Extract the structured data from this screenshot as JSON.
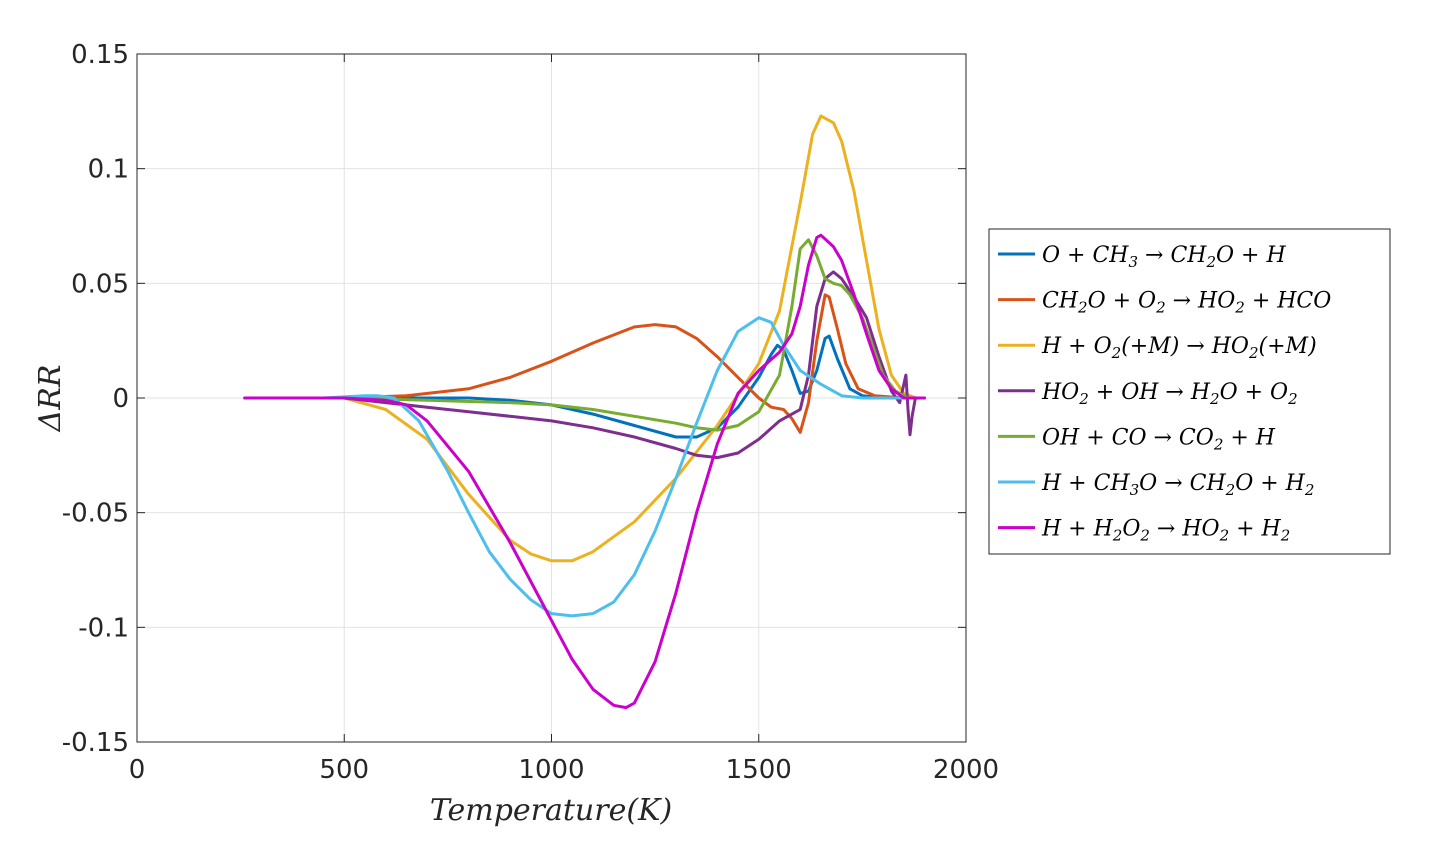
{
  "chart_data": {
    "type": "line",
    "title": "",
    "xlabel": "Temperature(K)",
    "ylabel": "ΔRR",
    "xlim": [
      0,
      2000
    ],
    "ylim": [
      -0.15,
      0.15
    ],
    "xticks": [
      0,
      500,
      1000,
      1500,
      2000
    ],
    "xtick_labels": [
      "0",
      "500",
      "1000",
      "1500",
      "2000"
    ],
    "yticks": [
      -0.15,
      -0.1,
      -0.05,
      0,
      0.05,
      0.1,
      0.15
    ],
    "ytick_labels": [
      "-0.15",
      "-0.1",
      "-0.05",
      "0",
      "0.05",
      "0.1",
      "0.15"
    ],
    "grid": true,
    "legend_position": "outside-right",
    "series": [
      {
        "name": "O + CH3 → CH2O + H",
        "color": "#0072BD",
        "x": [
          260,
          500,
          700,
          800,
          900,
          1000,
          1100,
          1200,
          1300,
          1350,
          1400,
          1450,
          1500,
          1530,
          1545,
          1560,
          1580,
          1600,
          1620,
          1640,
          1660,
          1670,
          1690,
          1720,
          1750,
          1800,
          1860,
          1900
        ],
        "y": [
          0,
          0,
          0,
          0,
          -0.001,
          -0.003,
          -0.007,
          -0.012,
          -0.017,
          -0.017,
          -0.013,
          -0.004,
          0.009,
          0.019,
          0.023,
          0.021,
          0.012,
          0.002,
          0.003,
          0.012,
          0.026,
          0.027,
          0.017,
          0.004,
          0.001,
          0,
          0,
          0
        ]
      },
      {
        "name": "CH2O + O2 → HO2 + HCO",
        "color": "#D95319",
        "x": [
          260,
          500,
          650,
          800,
          900,
          1000,
          1100,
          1200,
          1250,
          1300,
          1350,
          1400,
          1450,
          1500,
          1530,
          1560,
          1580,
          1600,
          1620,
          1640,
          1660,
          1670,
          1690,
          1710,
          1740,
          1780,
          1850,
          1900
        ],
        "y": [
          0,
          0,
          0.001,
          0.004,
          0.009,
          0.016,
          0.024,
          0.031,
          0.032,
          0.031,
          0.026,
          0.018,
          0.009,
          0,
          -0.004,
          -0.005,
          -0.009,
          -0.015,
          -0.002,
          0.025,
          0.045,
          0.044,
          0.03,
          0.015,
          0.004,
          0.001,
          0,
          0
        ]
      },
      {
        "name": "H + O2(+M) → HO2(+M)",
        "color": "#EDB120",
        "x": [
          260,
          500,
          600,
          700,
          800,
          900,
          950,
          1000,
          1050,
          1100,
          1200,
          1300,
          1400,
          1500,
          1550,
          1600,
          1630,
          1650,
          1680,
          1700,
          1730,
          1760,
          1790,
          1820,
          1850,
          1880,
          1900
        ],
        "y": [
          0,
          0,
          -0.005,
          -0.018,
          -0.042,
          -0.062,
          -0.068,
          -0.071,
          -0.071,
          -0.067,
          -0.054,
          -0.035,
          -0.012,
          0.015,
          0.038,
          0.085,
          0.115,
          0.123,
          0.12,
          0.112,
          0.09,
          0.06,
          0.03,
          0.01,
          0.002,
          0,
          0
        ]
      },
      {
        "name": "HO2 + OH → H2O + O2",
        "color": "#7E2F8E",
        "x": [
          260,
          500,
          600,
          700,
          800,
          900,
          1000,
          1100,
          1200,
          1300,
          1350,
          1400,
          1450,
          1500,
          1550,
          1580,
          1600,
          1620,
          1640,
          1660,
          1680,
          1700,
          1730,
          1760,
          1790,
          1820,
          1840,
          1855,
          1860,
          1865,
          1870,
          1878,
          1890,
          1900
        ],
        "y": [
          0,
          0,
          -0.002,
          -0.004,
          -0.006,
          -0.008,
          -0.01,
          -0.013,
          -0.017,
          -0.022,
          -0.025,
          -0.026,
          -0.024,
          -0.018,
          -0.01,
          -0.007,
          -0.005,
          0.01,
          0.04,
          0.052,
          0.055,
          0.052,
          0.044,
          0.035,
          0.018,
          0.003,
          -0.002,
          0.01,
          -0.005,
          -0.016,
          -0.008,
          0,
          0,
          0
        ]
      },
      {
        "name": "OH + CO → CO2 + H",
        "color": "#77AC30",
        "x": [
          260,
          500,
          700,
          900,
          1000,
          1100,
          1200,
          1300,
          1350,
          1400,
          1450,
          1500,
          1550,
          1580,
          1600,
          1620,
          1640,
          1660,
          1680,
          1700,
          1720,
          1750,
          1780,
          1800,
          1830,
          1860,
          1900
        ],
        "y": [
          0,
          0,
          -0.001,
          -0.002,
          -0.003,
          -0.005,
          -0.008,
          -0.011,
          -0.013,
          -0.014,
          -0.012,
          -0.006,
          0.01,
          0.04,
          0.065,
          0.069,
          0.062,
          0.052,
          0.05,
          0.049,
          0.045,
          0.035,
          0.02,
          0.01,
          0.003,
          0,
          0
        ]
      },
      {
        "name": "H + CH3O → CH2O + H2",
        "color": "#4DBEEE",
        "x": [
          260,
          450,
          550,
          580,
          620,
          680,
          750,
          800,
          850,
          900,
          950,
          1000,
          1050,
          1100,
          1150,
          1200,
          1250,
          1300,
          1350,
          1400,
          1450,
          1500,
          1530,
          1560,
          1600,
          1650,
          1700,
          1750,
          1800,
          1850,
          1900
        ],
        "y": [
          0,
          0,
          0.001,
          0.001,
          0,
          -0.01,
          -0.032,
          -0.05,
          -0.067,
          -0.079,
          -0.088,
          -0.094,
          -0.095,
          -0.094,
          -0.089,
          -0.077,
          -0.058,
          -0.035,
          -0.011,
          0.012,
          0.029,
          0.035,
          0.033,
          0.023,
          0.012,
          0.006,
          0.001,
          0,
          0,
          0,
          0
        ]
      },
      {
        "name": "H + H2O2 → HO2 + H2",
        "color": "#CC00CC",
        "x": [
          260,
          500,
          600,
          650,
          700,
          800,
          900,
          1000,
          1050,
          1100,
          1150,
          1180,
          1200,
          1250,
          1300,
          1350,
          1400,
          1450,
          1500,
          1550,
          1580,
          1600,
          1620,
          1640,
          1650,
          1680,
          1700,
          1730,
          1760,
          1790,
          1820,
          1850,
          1900
        ],
        "y": [
          0,
          0,
          -0.001,
          -0.003,
          -0.01,
          -0.032,
          -0.063,
          -0.097,
          -0.114,
          -0.127,
          -0.134,
          -0.135,
          -0.133,
          -0.115,
          -0.085,
          -0.05,
          -0.02,
          0.002,
          0.012,
          0.02,
          0.028,
          0.04,
          0.058,
          0.07,
          0.071,
          0.066,
          0.06,
          0.045,
          0.028,
          0.012,
          0.004,
          0,
          0
        ]
      }
    ]
  },
  "legend": {
    "entries": [
      {
        "pre": "O + CH",
        "sub1": "3",
        "mid": " → CH",
        "sub2": "2",
        "post": "O + H"
      },
      {
        "pre": "CH",
        "sub1": "2",
        "mid": "O + O",
        "sub2": "2",
        "mid2": " → HO",
        "sub3": "2",
        "post": " + HCO"
      },
      {
        "pre": "H + O",
        "sub1": "2",
        "mid": "(+M) → HO",
        "sub2": "2",
        "post": "(+M)"
      },
      {
        "pre": "HO",
        "sub1": "2",
        "mid": " + OH → H",
        "sub2": "2",
        "mid2": "O + O",
        "sub3": "2",
        "post": ""
      },
      {
        "pre": "OH + CO → CO",
        "sub1": "2",
        "mid": " + H",
        "sub2": "",
        "post": ""
      },
      {
        "pre": "H + CH",
        "sub1": "3",
        "mid": "O → CH",
        "sub2": "2",
        "mid2": "O + H",
        "sub3": "2",
        "post": ""
      },
      {
        "pre": "H + H",
        "sub1": "2",
        "mid": "O",
        "sub2": "2",
        "mid2": " → HO",
        "sub3": "2",
        "post": " + H",
        "sub4": "2"
      }
    ]
  }
}
